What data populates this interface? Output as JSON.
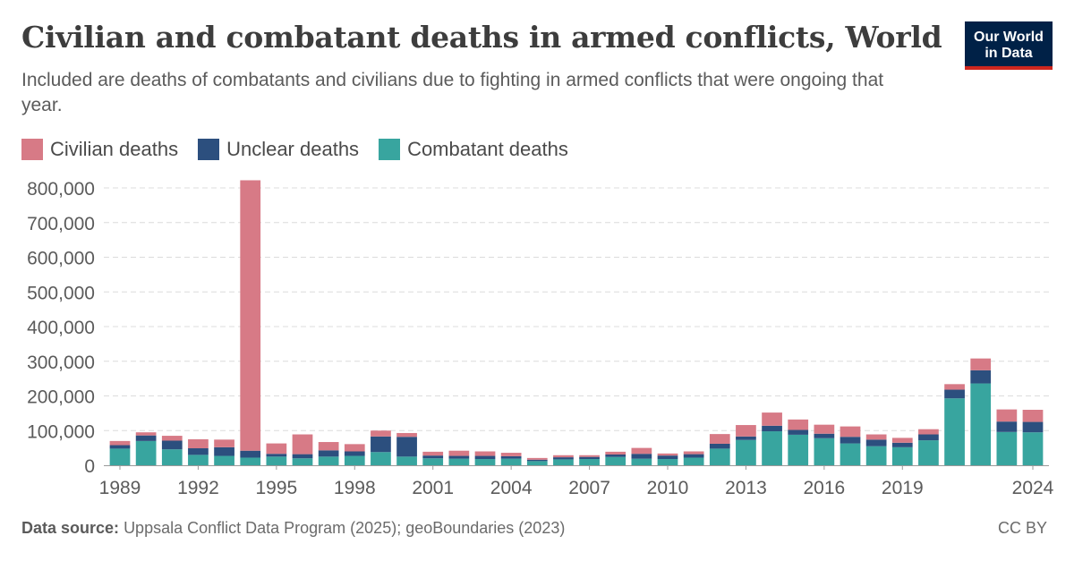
{
  "header": {
    "title": "Civilian and combatant deaths in armed conflicts, World",
    "subtitle": "Included are deaths of combatants and civilians due to fighting in armed conflicts that were ongoing that year.",
    "logo_line1": "Our World",
    "logo_line2": "in Data"
  },
  "footer": {
    "source_label": "Data source:",
    "source_text": "Uppsala Conflict Data Program (2025); geoBoundaries (2023)",
    "license": "CC BY"
  },
  "chart_data": {
    "type": "bar",
    "stacked": true,
    "x": [
      1989,
      1990,
      1991,
      1992,
      1993,
      1994,
      1995,
      1996,
      1997,
      1998,
      1999,
      2000,
      2001,
      2002,
      2003,
      2004,
      2005,
      2006,
      2007,
      2008,
      2009,
      2010,
      2011,
      2012,
      2013,
      2014,
      2015,
      2016,
      2017,
      2018,
      2019,
      2020,
      2021,
      2022,
      2023,
      2024
    ],
    "series": [
      {
        "name": "Combatant deaths",
        "color": "#38a59f",
        "values": [
          48000,
          70000,
          46000,
          30000,
          27000,
          22000,
          25000,
          20000,
          25000,
          27000,
          38000,
          25000,
          20000,
          19000,
          18000,
          19000,
          12000,
          17000,
          18000,
          24000,
          19000,
          18000,
          22000,
          48000,
          73000,
          98000,
          88000,
          78000,
          63000,
          55000,
          52000,
          72000,
          193000,
          236000,
          96000,
          95000
        ]
      },
      {
        "name": "Unclear deaths",
        "color": "#2c4f7e",
        "values": [
          10000,
          16000,
          25000,
          19000,
          25000,
          20000,
          8000,
          12000,
          18000,
          13000,
          45000,
          57000,
          8000,
          8000,
          9000,
          7000,
          4000,
          6000,
          6000,
          7000,
          14000,
          10000,
          10000,
          14000,
          10000,
          16000,
          14000,
          13000,
          19000,
          19000,
          13000,
          17000,
          25000,
          38000,
          30000,
          30000
        ]
      },
      {
        "name": "Civilian deaths",
        "color": "#d77a86",
        "values": [
          12000,
          9000,
          14000,
          26000,
          22000,
          780000,
          30000,
          57000,
          24000,
          21000,
          17000,
          11000,
          11000,
          15000,
          13000,
          10000,
          5000,
          6000,
          5000,
          8000,
          17000,
          6000,
          8000,
          28000,
          33000,
          38000,
          30000,
          26000,
          30000,
          15000,
          14000,
          15000,
          16000,
          34000,
          35000,
          35000
        ]
      }
    ],
    "ylim": [
      0,
      800000
    ],
    "yticks": [
      0,
      100000,
      200000,
      300000,
      400000,
      500000,
      600000,
      700000,
      800000
    ],
    "ytick_labels": [
      "0",
      "100,000",
      "200,000",
      "300,000",
      "400,000",
      "500,000",
      "600,000",
      "700,000",
      "800,000"
    ],
    "xticks": [
      "1989",
      "1992",
      "1995",
      "1998",
      "2001",
      "2004",
      "2007",
      "2010",
      "2013",
      "2016",
      "2019",
      "2024"
    ],
    "grid": "horizontal dashed",
    "legend_position": "top-left"
  }
}
